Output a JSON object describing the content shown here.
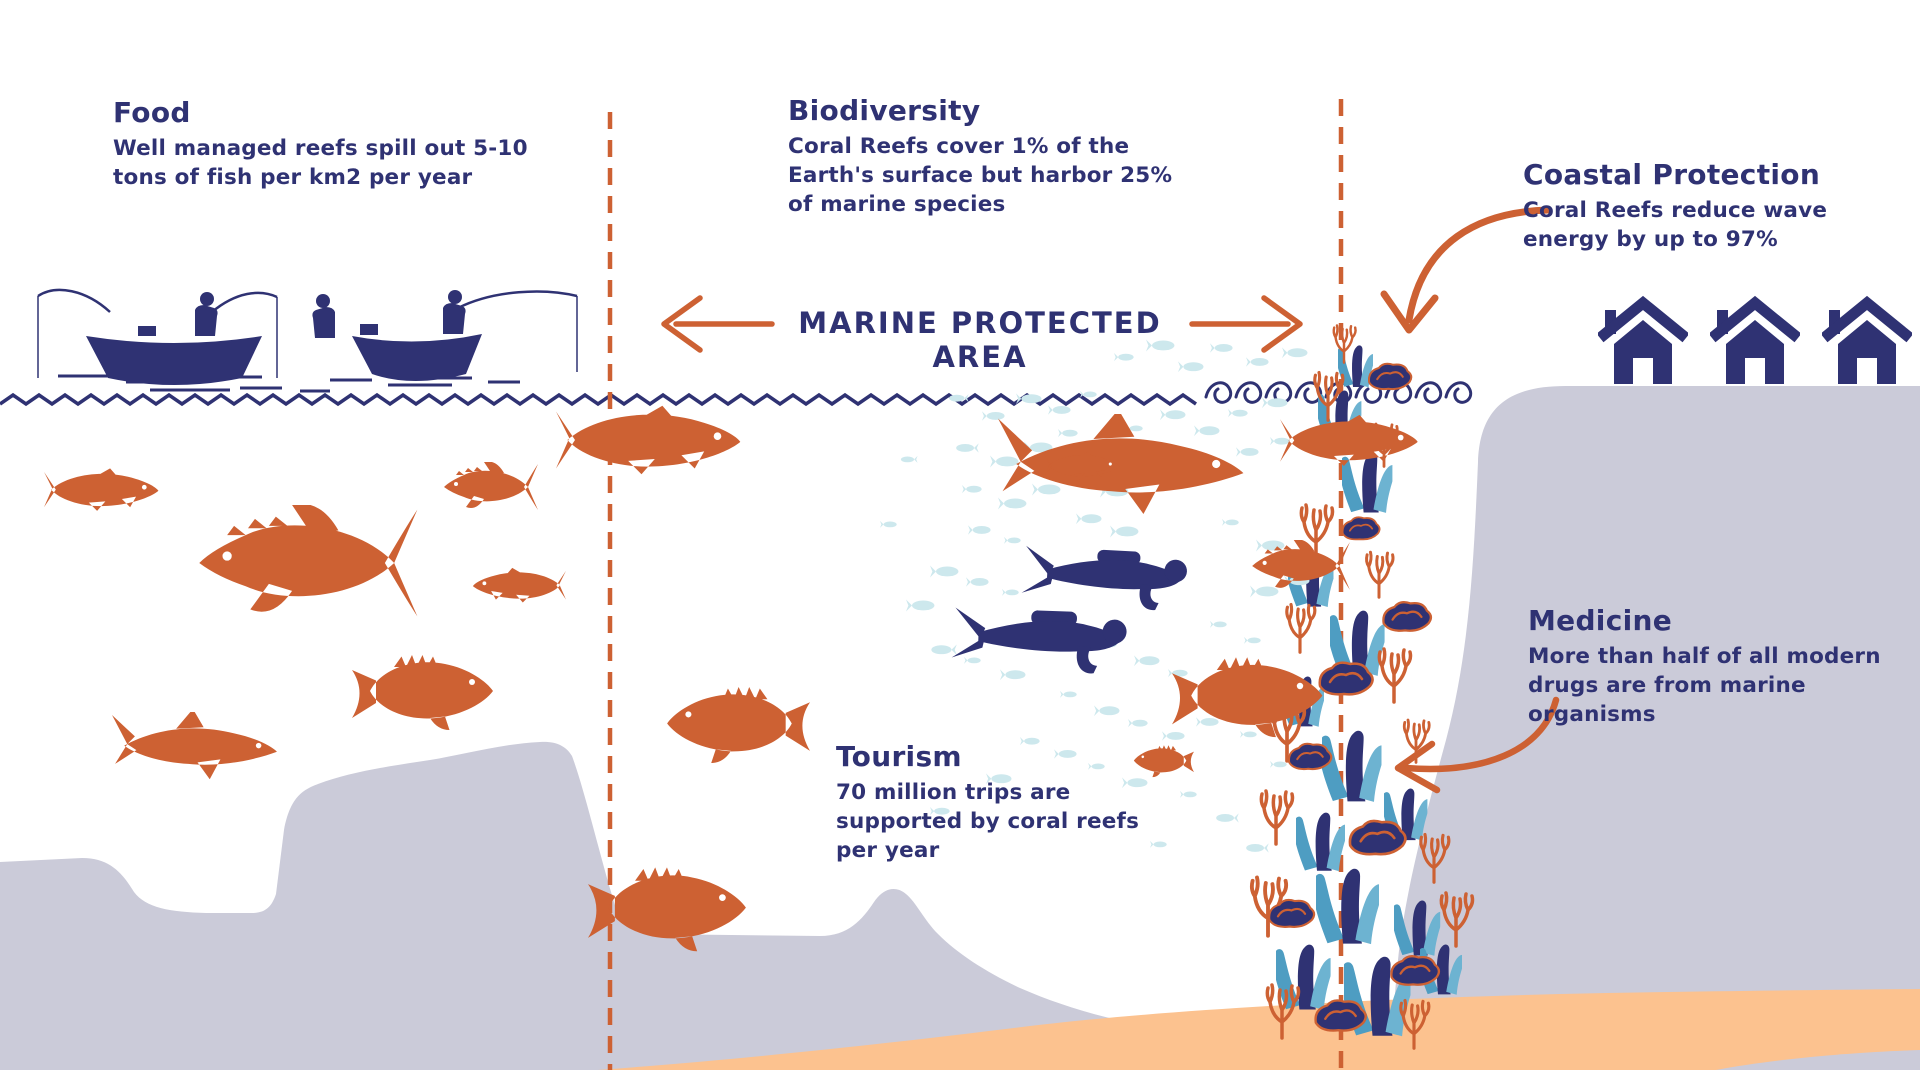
{
  "palette": {
    "navy": "#2f3273",
    "orange": "#cd6133",
    "pale_blue": "#cde8ed",
    "lavender": "#cbcbd9",
    "peach": "#fcc28f",
    "steel_blue": "#4e9dc2",
    "steel_blue_light": "#6db3d1",
    "background": "#ffffff"
  },
  "banner": {
    "label": "MARINE PROTECTED AREA"
  },
  "sections": {
    "food": {
      "title": "Food",
      "body": "Well managed reefs spill out 5-10\ntons of fish per km2 per year"
    },
    "biodiversity": {
      "title": "Biodiversity",
      "body": "Coral Reefs cover 1% of the\nEarth's surface but harbor 25%\nof marine species"
    },
    "coastal_protection": {
      "title": "Coastal Protection",
      "body": "Coral Reefs reduce wave\nenergy by up to 97%"
    },
    "tourism": {
      "title": "Tourism",
      "body": "70 million trips are\nsupported by coral reefs\nper year"
    },
    "medicine": {
      "title": "Medicine",
      "body": "More than half of all modern\ndrugs are from marine\norganisms"
    }
  },
  "icons": {
    "fishing_boats": "two navy fishing boats with anglers",
    "houses": "three navy coastal houses",
    "divers": "two scuba divers",
    "orange_fish": "assorted reef fish, tuna, sharks, groupers",
    "school_fish": "school of small pale blue fish",
    "coral_reef": "tube sponges, branching and brain corals",
    "water_line": "zigzag water surface with breaking wave curls",
    "boundary_lines": "two dashed marine protected area boundaries"
  }
}
